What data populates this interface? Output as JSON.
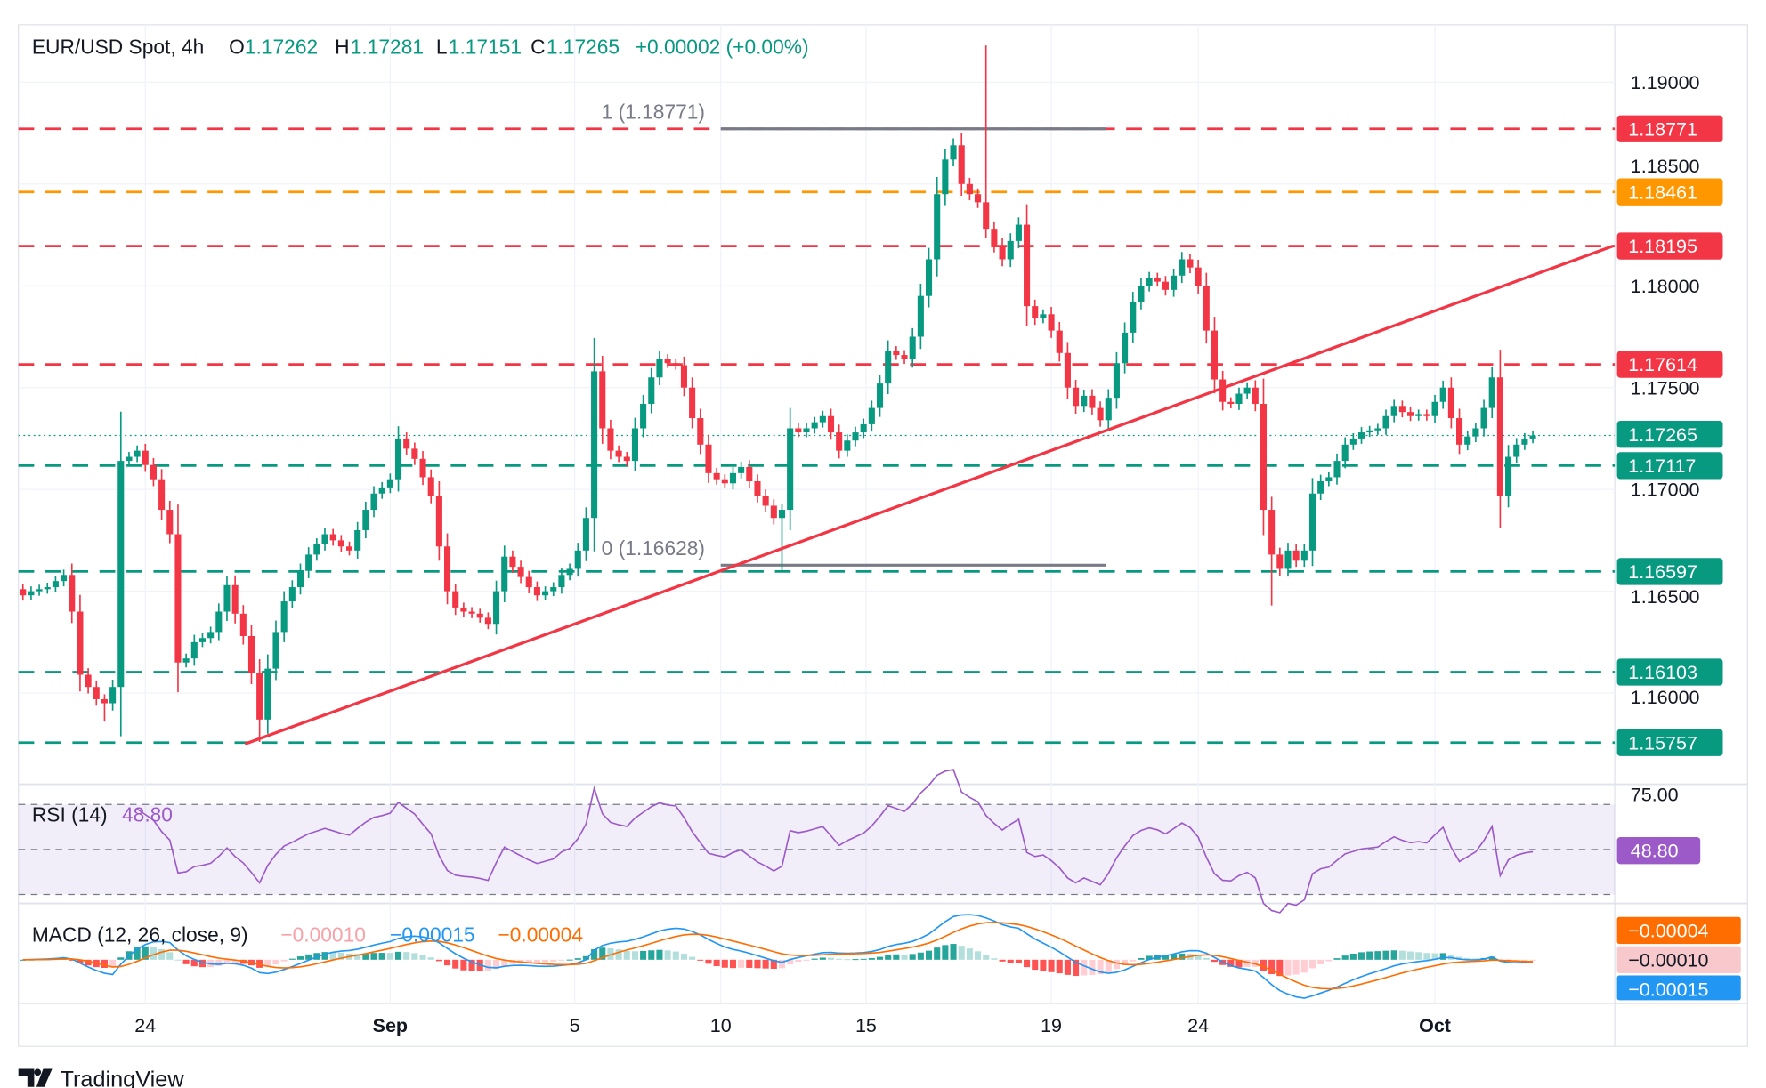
{
  "header": {
    "symbol": "EUR/USD Spot, 4h",
    "o_label": "O",
    "o_value": "1.17262",
    "h_label": "H",
    "h_value": "1.17281",
    "l_label": "L",
    "l_value": "1.17151",
    "c_label": "C",
    "c_value": "1.17265",
    "change": "+0.00002 (+0.00%)"
  },
  "colors": {
    "up": "#089981",
    "down": "#f23645",
    "orange": "#ff9800",
    "rsi": "#9c5ac8",
    "macd": "#2196f3",
    "signal": "#ff6d00",
    "hist_pink": "#f7c9cc",
    "fib": "#787b86"
  },
  "chart_data": {
    "type": "candlestick",
    "title": "EUR/USD Spot, 4h",
    "ylim": [
      1.155,
      1.1925
    ],
    "y_ticks": [
      "1.19000",
      "1.18500",
      "1.18000",
      "1.17500",
      "1.17000",
      "1.16500",
      "1.16000"
    ],
    "y_tick_values": [
      1.19,
      1.185,
      1.18,
      1.175,
      1.17,
      1.165,
      1.16
    ],
    "x_ticks": [
      {
        "label": "24",
        "index": 15
      },
      {
        "label": "Sep",
        "index": 45
      },
      {
        "label": "5",
        "index": 67.6
      },
      {
        "label": "10",
        "index": 85.5
      },
      {
        "label": "15",
        "index": 103.3
      },
      {
        "label": "19",
        "index": 126
      },
      {
        "label": "24",
        "index": 144
      },
      {
        "label": "Oct",
        "index": 173
      }
    ],
    "closes": [
      1.1648,
      1.165,
      1.1651,
      1.1652,
      1.1655,
      1.1658,
      1.164,
      1.1609,
      1.1603,
      1.1597,
      1.1595,
      1.1603,
      1.1714,
      1.1716,
      1.1719,
      1.1712,
      1.1705,
      1.169,
      1.1678,
      1.1615,
      1.1617,
      1.1625,
      1.1627,
      1.163,
      1.164,
      1.1653,
      1.1639,
      1.1628,
      1.161,
      1.1587,
      1.1612,
      1.163,
      1.1645,
      1.1652,
      1.166,
      1.1668,
      1.1673,
      1.1678,
      1.1675,
      1.1672,
      1.167,
      1.168,
      1.169,
      1.1698,
      1.1701,
      1.1705,
      1.1725,
      1.172,
      1.1715,
      1.1706,
      1.1697,
      1.1672,
      1.165,
      1.1642,
      1.164,
      1.1639,
      1.1637,
      1.1634,
      1.165,
      1.1667,
      1.1662,
      1.1657,
      1.1652,
      1.1648,
      1.165,
      1.1652,
      1.1658,
      1.1661,
      1.167,
      1.1686,
      1.1758,
      1.173,
      1.1719,
      1.1716,
      1.1714,
      1.173,
      1.1742,
      1.1755,
      1.1764,
      1.1762,
      1.1761,
      1.175,
      1.1735,
      1.1722,
      1.1708,
      1.1705,
      1.1703,
      1.1708,
      1.1711,
      1.1704,
      1.1697,
      1.1692,
      1.1686,
      1.169,
      1.173,
      1.1728,
      1.173,
      1.1733,
      1.1736,
      1.1728,
      1.1719,
      1.1724,
      1.1728,
      1.1732,
      1.174,
      1.1752,
      1.1768,
      1.1766,
      1.1764,
      1.1775,
      1.1795,
      1.1813,
      1.1845,
      1.1862,
      1.1869,
      1.185,
      1.1845,
      1.1841,
      1.1828,
      1.182,
      1.1813,
      1.1822,
      1.183,
      1.179,
      1.1784,
      1.1786,
      1.1778,
      1.1767,
      1.175,
      1.1741,
      1.1746,
      1.174,
      1.1734,
      1.1745,
      1.1762,
      1.1777,
      1.1792,
      1.18,
      1.1804,
      1.1802,
      1.1798,
      1.1805,
      1.1813,
      1.1809,
      1.18,
      1.1778,
      1.1754,
      1.1743,
      1.1742,
      1.1747,
      1.175,
      1.1742,
      1.169,
      1.1668,
      1.1661,
      1.167,
      1.1665,
      1.167,
      1.1698,
      1.1704,
      1.1706,
      1.1714,
      1.1722,
      1.1725,
      1.1728,
      1.1729,
      1.173,
      1.1736,
      1.1741,
      1.1738,
      1.1736,
      1.1737,
      1.1736,
      1.1743,
      1.175,
      1.1735,
      1.1722,
      1.1726,
      1.173,
      1.174,
      1.1755,
      1.1697,
      1.1716,
      1.1722,
      1.1725,
      1.17265
    ],
    "wick_extremes": [
      {
        "i": 118,
        "high": 1.1918
      },
      {
        "i": 29,
        "low": 1.1576
      },
      {
        "i": 10,
        "low": 1.1586
      },
      {
        "i": 153,
        "low": 1.1643
      },
      {
        "i": 93,
        "low": 1.166
      },
      {
        "i": 181,
        "low": 1.1681
      }
    ],
    "levels": [
      {
        "price": 1.18771,
        "label": "1.18771",
        "color": "#f23645"
      },
      {
        "price": 1.18461,
        "label": "1.18461",
        "color": "#ff9800"
      },
      {
        "price": 1.18195,
        "label": "1.18195",
        "color": "#f23645"
      },
      {
        "price": 1.17614,
        "label": "1.17614",
        "color": "#f23645"
      },
      {
        "price": 1.17117,
        "label": "1.17117",
        "color": "#089981"
      },
      {
        "price": 1.16597,
        "label": "1.16597",
        "color": "#089981"
      },
      {
        "price": 1.16103,
        "label": "1.16103",
        "color": "#089981"
      },
      {
        "price": 1.15757,
        "label": "1.15757",
        "color": "#089981"
      }
    ],
    "current_price": {
      "price": 1.17265,
      "label": "1.17265"
    },
    "fib": [
      {
        "label": "1 (1.18771)",
        "price": 1.18771,
        "from_index": 85.5,
        "to_index": 132.7
      },
      {
        "label": "0 (1.16628)",
        "price": 1.16628,
        "from_index": 85.5,
        "to_index": 132.7
      }
    ],
    "trendline": {
      "from": {
        "index": 27.2,
        "price": 1.1575
      },
      "to": {
        "index": 194.8,
        "price": 1.18195
      }
    }
  },
  "rsi": {
    "legend": "RSI (14)",
    "value": "48.80",
    "upper_tick": "75.00",
    "levels": [
      70,
      50,
      30
    ]
  },
  "macd": {
    "legend": "MACD (12, 26, close, 9)",
    "hist_value": "−0.00010",
    "macd_value": "−0.00015",
    "signal_value": "−0.00004",
    "label_signal": "−0.00004",
    "label_hist": "−0.00010",
    "label_macd": "−0.00015"
  },
  "branding": {
    "logo_text": "TradingView"
  }
}
